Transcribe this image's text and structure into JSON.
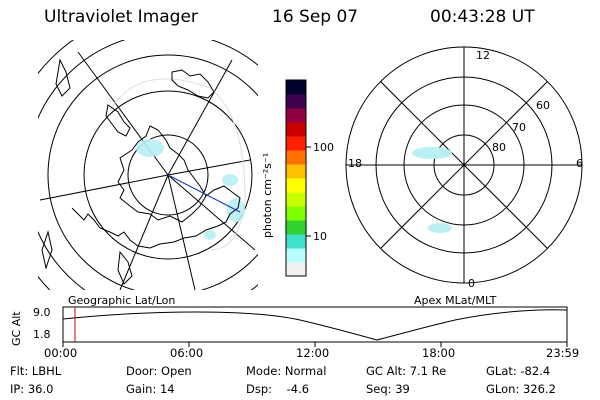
{
  "header": {
    "instrument": "Ultraviolet Imager",
    "date": "16 Sep 07",
    "time": "00:43:28 UT"
  },
  "colorbar": {
    "unit_label": "photon cm⁻²s⁻¹",
    "tick_labels": [
      "100",
      "10"
    ],
    "colors": [
      "#f0f0f0",
      "#b8ffff",
      "#40e0d0",
      "#30d030",
      "#80ff00",
      "#c8ff00",
      "#ffff00",
      "#ffc000",
      "#ff7000",
      "#ff2000",
      "#c80000",
      "#900040",
      "#400050",
      "#000030"
    ]
  },
  "left_map": {
    "caption": "Geographic Lat/Lon"
  },
  "right_map": {
    "caption": "Apex MLat/MLT",
    "mlt_labels": [
      "12",
      "18",
      "6",
      "0"
    ],
    "mlat_labels": [
      "60",
      "70",
      "80"
    ]
  },
  "altitude_plot": {
    "ylabel": "GC Alt",
    "ytick_labels": [
      "9.0",
      "1.8"
    ],
    "xtick_labels": [
      "00:00",
      "06:00",
      "12:00",
      "18:00",
      "23:59"
    ],
    "marker_time": "00:43:28"
  },
  "info": {
    "filter": "Flt: LBHL",
    "ip": "IP: 36.0",
    "door": "Door: Open",
    "gain": "Gain: 14",
    "mode": "Mode: Normal",
    "dsp": "Dsp:    -4.6",
    "gc_alt": "GC Alt: 7.1 Re",
    "seq": "Seq: 39",
    "glat": "GLat: -82.4",
    "glon": "GLon: 326.2"
  }
}
